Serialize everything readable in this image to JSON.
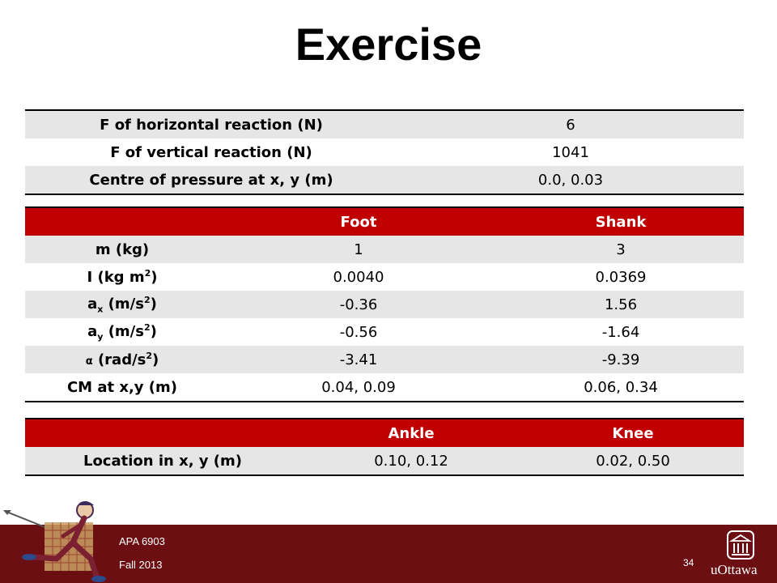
{
  "title": "Exercise",
  "reaction_table": {
    "rows": [
      {
        "label": "F of horizontal reaction (N)",
        "value": "6"
      },
      {
        "label": "F of vertical reaction (N)",
        "value": "1041"
      },
      {
        "label": "Centre of pressure at x, y (m)",
        "value": "0.0, 0.03"
      }
    ]
  },
  "segment_table": {
    "headers": [
      "",
      "Foot",
      "Shank"
    ],
    "rows": [
      {
        "label": "m (kg)",
        "foot": "1",
        "shank": "3"
      },
      {
        "label": "I (kg m",
        "label_sup": "2",
        "label_end": ")",
        "foot": "0.0040",
        "shank": "0.0369"
      },
      {
        "label": "a",
        "label_sub": "x",
        "label_mid": " (m/s",
        "label_sup": "2",
        "label_end": ")",
        "foot": "-0.36",
        "shank": "1.56"
      },
      {
        "label": "a",
        "label_sub": "y",
        "label_mid": " (m/s",
        "label_sup": "2",
        "label_end": ")",
        "foot": "-0.56",
        "shank": "-1.64"
      },
      {
        "label": "α",
        "label_mid": " (rad/s",
        "label_sup": "2",
        "label_end": ")",
        "foot": "-3.41",
        "shank": "-9.39"
      },
      {
        "label": "CM at x,y (m)",
        "foot": "0.04, 0.09",
        "shank": "0.06, 0.34"
      }
    ]
  },
  "joint_table": {
    "headers": [
      "",
      "Ankle",
      "Knee"
    ],
    "rows": [
      {
        "label": "Location in x, y (m)",
        "ankle": "0.10, 0.12",
        "knee": "0.02, 0.50"
      }
    ]
  },
  "footer": {
    "course": "APA 6903",
    "term": "Fall 2013",
    "page_number": "34",
    "logo_text": "uOttawa"
  },
  "colors": {
    "header_red": "#c00000",
    "footer_maroon": "#6b0f12",
    "row_gray": "#e6e6e6"
  }
}
